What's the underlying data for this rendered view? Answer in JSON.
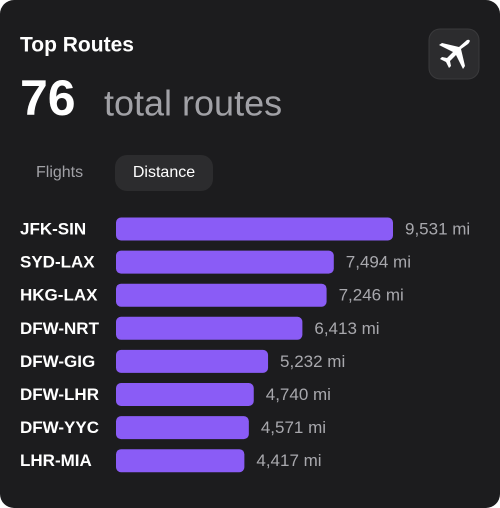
{
  "header": {
    "title": "Top Routes",
    "count": 76,
    "count_text": "total routes"
  },
  "tabs": [
    "Flights",
    "Distance"
  ],
  "chart_data": {
    "type": "bar",
    "orientation": "horizontal",
    "color": "#8a5cf6",
    "categories": [
      "JFK-SIN",
      "SYD-LAX",
      "HKG-LAX",
      "DFW-NRT",
      "DFW-GIG",
      "DFW-LHR",
      "DFW-YYC",
      "LHR-MIA"
    ],
    "values": [
      9531,
      7494,
      7246,
      6413,
      5232,
      4740,
      4571,
      4417
    ],
    "value_labels": [
      "9,531 mi",
      "7,494 mi",
      "7,246 mi",
      "6,413 mi",
      "5,232 mi",
      "4,740 mi",
      "4,571 mi",
      "4,417 mi"
    ]
  }
}
